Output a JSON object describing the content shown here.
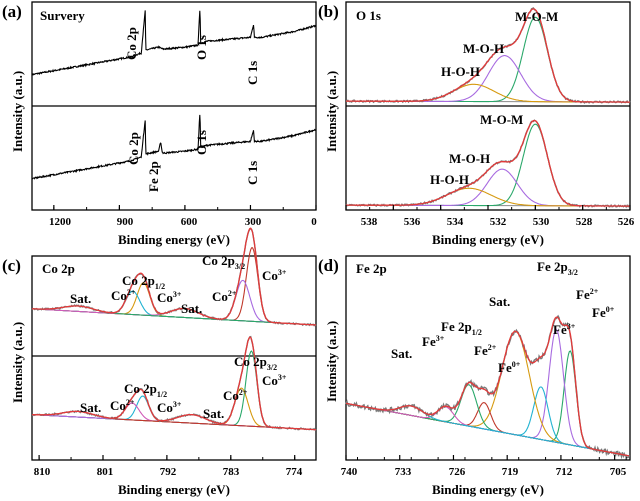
{
  "colors": {
    "raw": "#7a7a7a",
    "fit": "#e23a3a",
    "survey_line": "#000000",
    "purple": "#a86be0",
    "green": "#2aa86a",
    "orange": "#d69a10",
    "cyan": "#22b3d2",
    "red_dark": "#c0392b",
    "magenta": "#d05ab8",
    "baseline": "#8a8a8a"
  },
  "chart_data": [
    {
      "panel": "(a)",
      "type": "line",
      "title": "Survery",
      "xlabel": "Binding energy (eV)",
      "ylabel": "Intensity (a.u.)",
      "xlim": [
        1300,
        0
      ],
      "xticks": [
        1200,
        900,
        600,
        300,
        0
      ],
      "subplots": [
        {
          "annotations": [
            {
              "text": "Co 2p",
              "x": 780
            },
            {
              "text": "O 1s",
              "x": 530
            },
            {
              "text": "C 1s",
              "x": 285
            }
          ],
          "series": [
            {
              "name": "survey",
              "x": [
                1300,
                1200,
                1100,
                1000,
                900,
                850,
                800,
                782,
                779,
                760,
                720,
                700,
                600,
                540,
                531,
                528,
                500,
                400,
                300,
                285,
                283,
                250,
                200,
                100,
                0
              ],
              "y": [
                0.3,
                0.34,
                0.38,
                0.42,
                0.46,
                0.48,
                0.52,
                0.95,
                0.55,
                0.56,
                0.58,
                0.56,
                0.58,
                0.6,
                1.0,
                0.62,
                0.64,
                0.66,
                0.68,
                0.82,
                0.68,
                0.68,
                0.7,
                0.74,
                0.8
              ]
            }
          ]
        },
        {
          "annotations": [
            {
              "text": "Co 2p",
              "x": 780
            },
            {
              "text": "Fe 2p",
              "x": 711
            },
            {
              "text": "O 1s",
              "x": 530
            },
            {
              "text": "C 1s",
              "x": 285
            }
          ],
          "series": [
            {
              "name": "survey",
              "x": [
                1300,
                1200,
                1100,
                1000,
                900,
                850,
                800,
                782,
                779,
                760,
                720,
                711,
                705,
                700,
                600,
                540,
                531,
                528,
                500,
                400,
                300,
                285,
                283,
                250,
                200,
                100,
                0
              ],
              "y": [
                0.3,
                0.34,
                0.38,
                0.42,
                0.46,
                0.48,
                0.52,
                0.9,
                0.55,
                0.56,
                0.58,
                0.68,
                0.58,
                0.56,
                0.58,
                0.6,
                1.0,
                0.62,
                0.64,
                0.66,
                0.68,
                0.8,
                0.68,
                0.68,
                0.7,
                0.74,
                0.8
              ]
            }
          ]
        }
      ]
    },
    {
      "panel": "(b)",
      "type": "line",
      "title": "O 1s",
      "xlabel": "Binding energy (eV)",
      "ylabel": "Intensity (a.u.)",
      "xlim": [
        538,
        526
      ],
      "xticks": [
        538,
        536,
        534,
        532,
        530,
        528,
        526
      ],
      "subplots": [
        {
          "peaks": [
            {
              "name": "M-O-M",
              "center": 530.0,
              "height": 0.88,
              "fwhm": 1.2,
              "color": "green"
            },
            {
              "name": "M-O-H",
              "center": 531.3,
              "height": 0.48,
              "fwhm": 1.6,
              "color": "purple"
            },
            {
              "name": "H-O-H",
              "center": 532.6,
              "height": 0.18,
              "fwhm": 2.0,
              "color": "orange"
            }
          ]
        },
        {
          "peaks": [
            {
              "name": "M-O-M",
              "center": 530.0,
              "height": 0.85,
              "fwhm": 1.2,
              "color": "green"
            },
            {
              "name": "M-O-H",
              "center": 531.4,
              "height": 0.38,
              "fwhm": 1.5,
              "color": "purple"
            },
            {
              "name": "H-O-H",
              "center": 532.8,
              "height": 0.18,
              "fwhm": 2.2,
              "color": "orange"
            }
          ]
        }
      ]
    },
    {
      "panel": "(c)",
      "type": "line",
      "title": "Co 2p",
      "xlabel": "Binding energy (eV)",
      "ylabel": "Intensity (a.u.)",
      "xlim": [
        811,
        771
      ],
      "xticks": [
        810,
        801,
        792,
        783,
        774
      ],
      "subplots": [
        {
          "peaks": [
            {
              "name": "Co 2p3/2 Co3+",
              "center": 780.0,
              "height": 0.82,
              "fwhm": 1.9,
              "color": "red_dark"
            },
            {
              "name": "Co 2p3/2 Co2+",
              "center": 781.3,
              "height": 0.45,
              "fwhm": 2.3,
              "color": "purple"
            },
            {
              "name": "Co 2p1/2 Co3+",
              "center": 795.3,
              "height": 0.36,
              "fwhm": 2.1,
              "color": "orange"
            },
            {
              "name": "Co 2p1/2 Co2+",
              "center": 796.8,
              "height": 0.26,
              "fwhm": 2.3,
              "color": "cyan"
            },
            {
              "name": "Sat.",
              "center": 789.5,
              "height": 0.1,
              "fwhm": 4.5,
              "color": "magenta"
            },
            {
              "name": "Sat.",
              "center": 804.5,
              "height": 0.06,
              "fwhm": 5.0,
              "color": "green"
            }
          ]
        },
        {
          "peaks": [
            {
              "name": "Co 2p3/2 Co3+",
              "center": 780.1,
              "height": 0.8,
              "fwhm": 1.8,
              "color": "green"
            },
            {
              "name": "Co 2p3/2 Co2+",
              "center": 781.5,
              "height": 0.4,
              "fwhm": 2.2,
              "color": "orange"
            },
            {
              "name": "Co 2p1/2 Co3+",
              "center": 795.4,
              "height": 0.26,
              "fwhm": 2.0,
              "color": "cyan"
            },
            {
              "name": "Co 2p1/2 Co2+",
              "center": 796.9,
              "height": 0.18,
              "fwhm": 2.3,
              "color": "magenta"
            },
            {
              "name": "Sat.",
              "center": 788.5,
              "height": 0.09,
              "fwhm": 4.5,
              "color": "purple"
            },
            {
              "name": "Sat.",
              "center": 804.5,
              "height": 0.06,
              "fwhm": 5.0,
              "color": "red_dark"
            }
          ]
        }
      ]
    },
    {
      "panel": "(d)",
      "type": "line",
      "title": "Fe 2p",
      "xlabel": "Binding energy (eV)",
      "ylabel": "Intensity (a.u.)",
      "xlim": [
        740,
        703
      ],
      "xticks": [
        740,
        733,
        726,
        719,
        712,
        705
      ],
      "peaks": [
        {
          "name": "Fe0+",
          "center": 710.8,
          "height": 0.5,
          "fwhm": 1.8,
          "color": "green"
        },
        {
          "name": "Fe2+",
          "center": 712.6,
          "height": 0.6,
          "fwhm": 2.2,
          "color": "purple"
        },
        {
          "name": "Fe3+",
          "center": 714.6,
          "height": 0.28,
          "fwhm": 2.2,
          "color": "cyan"
        },
        {
          "name": "Sat.",
          "center": 717.9,
          "height": 0.55,
          "fwhm": 4.2,
          "color": "orange"
        },
        {
          "name": "Fe0+",
          "center": 722.0,
          "height": 0.14,
          "fwhm": 2.0,
          "color": "red_dark"
        },
        {
          "name": "Fe2+",
          "center": 724.0,
          "height": 0.22,
          "fwhm": 2.4,
          "color": "green"
        },
        {
          "name": "Fe3+",
          "center": 727.0,
          "height": 0.08,
          "fwhm": 2.4,
          "color": "magenta"
        },
        {
          "name": "Sat.",
          "center": 731.5,
          "height": 0.05,
          "fwhm": 3.5,
          "color": "cyan"
        }
      ],
      "background": {
        "left": 0.28,
        "right": 0.0
      }
    }
  ],
  "labels": {
    "a": {
      "panel": "(a)",
      "title": "Survery",
      "ylabel": "Intensity (a.u.)",
      "xlabel": "Binding energy (eV)",
      "co2p_top": "Co 2p",
      "o1s_top": "O 1s",
      "c1s_top": "C 1s",
      "co2p_bot": "Co 2p",
      "fe2p_bot": "Fe 2p",
      "o1s_bot": "O 1s",
      "c1s_bot": "C 1s",
      "x1": "1200",
      "x2": "900",
      "x3": "600",
      "x4": "300",
      "x5": "0"
    },
    "b": {
      "panel": "(b)",
      "title": "O 1s",
      "ylabel": "Intensity (a.u.)",
      "xlabel": "Binding energy (eV)",
      "mom_top": "M-O-M",
      "moh_top": "M-O-H",
      "hoh_top": "H-O-H",
      "mom_bot": "M-O-M",
      "moh_bot": "M-O-H",
      "hoh_bot": "H-O-H",
      "x1": "538",
      "x2": "536",
      "x3": "534",
      "x4": "532",
      "x5": "530",
      "x6": "528",
      "x7": "526"
    },
    "c": {
      "panel": "(c)",
      "title": "Co 2p",
      "ylabel": "Intensity (a.u.)",
      "xlabel": "Binding energy (eV)",
      "top": {
        "sat1": "Sat.",
        "co2a": "Co",
        "co2a_s": "2+",
        "co12": "Co 2p",
        "co12_s": "1/2",
        "co3a": "Co",
        "co3a_s": "3+",
        "sat2": "Sat.",
        "co2b": "Co",
        "co2b_s": "2+",
        "co32": "Co 2p",
        "co32_s": "3/2",
        "co3b": "Co",
        "co3b_s": "3+"
      },
      "bot": {
        "sat1": "Sat.",
        "co2a": "Co",
        "co2a_s": "2+",
        "co12": "Co 2p",
        "co12_s": "1/2",
        "co3a": "Co",
        "co3a_s": "3+",
        "sat2": "Sat.",
        "co2b": "Co",
        "co2b_s": "2+",
        "co32": "Co 2p",
        "co32_s": "3/2",
        "co3b": "Co",
        "co3b_s": "3+"
      },
      "x1": "810",
      "x2": "801",
      "x3": "792",
      "x4": "783",
      "x5": "774"
    },
    "d": {
      "panel": "(d)",
      "title": "Fe 2p",
      "ylabel": "Intensity (a.u.)",
      "xlabel": "Binding energy (eV)",
      "fe32": "Fe 2p",
      "fe32_s": "3/2",
      "fe12": "Fe 2p",
      "fe12_s": "1/2",
      "sat_main": "Sat.",
      "sat_small": "Sat.",
      "fe2a": "Fe",
      "fe2a_s": "2+",
      "fe0a": "Fe",
      "fe0a_s": "0+",
      "fe3a": "Fe",
      "fe3a_s": "3+",
      "fe3b": "Fe",
      "fe3b_s": "3+",
      "fe2b": "Fe",
      "fe2b_s": "2+",
      "fe0b": "Fe",
      "fe0b_s": "0+",
      "x1": "740",
      "x2": "733",
      "x3": "726",
      "x4": "719",
      "x5": "712",
      "x6": "705"
    }
  }
}
